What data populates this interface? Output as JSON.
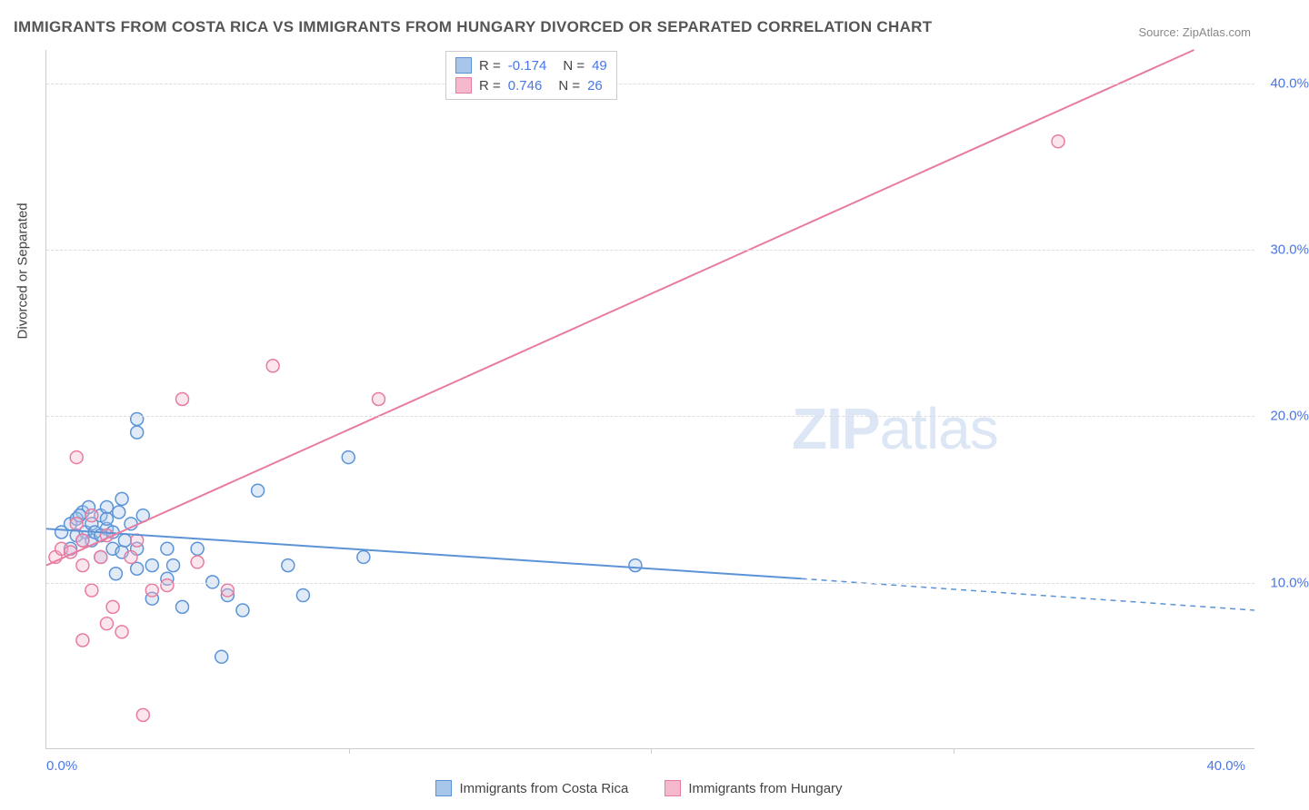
{
  "title": "IMMIGRANTS FROM COSTA RICA VS IMMIGRANTS FROM HUNGARY DIVORCED OR SEPARATED CORRELATION CHART",
  "source": "Source: ZipAtlas.com",
  "y_axis_label": "Divorced or Separated",
  "watermark_part1": "ZIP",
  "watermark_part2": "atlas",
  "chart": {
    "type": "scatter-with-regression",
    "xlim": [
      0,
      40
    ],
    "ylim": [
      0,
      42
    ],
    "x_ticks": [
      {
        "pos": 0,
        "label": "0.0%",
        "align": "left"
      },
      {
        "pos": 40,
        "label": "40.0%",
        "align": "right"
      }
    ],
    "x_minor_ticks": [
      10,
      20,
      30
    ],
    "y_ticks": [
      {
        "pos": 10,
        "label": "10.0%"
      },
      {
        "pos": 20,
        "label": "20.0%"
      },
      {
        "pos": 30,
        "label": "30.0%"
      },
      {
        "pos": 40,
        "label": "40.0%"
      }
    ],
    "background_color": "#ffffff",
    "grid_color": "#dddddd",
    "axis_color": "#cccccc",
    "tick_label_color": "#4876e8",
    "marker_radius": 7,
    "marker_stroke_width": 1.5,
    "marker_fill_opacity": 0.35,
    "line_width": 2
  },
  "series": [
    {
      "name": "Immigrants from Costa Rica",
      "color_stroke": "#5b93d6",
      "color_fill": "#a8c6ea",
      "R": "-0.174",
      "N": "49",
      "regression": {
        "x1": 0,
        "y1": 13.2,
        "x2": 25,
        "y2": 10.2,
        "dash_x1": 25,
        "dash_y1": 10.2,
        "dash_x2": 40,
        "dash_y2": 8.3
      },
      "points": [
        [
          0.5,
          13
        ],
        [
          0.8,
          13.5
        ],
        [
          1.0,
          12.8
        ],
        [
          1.2,
          14.2
        ],
        [
          1.3,
          13.0
        ],
        [
          1.5,
          13.5
        ],
        [
          1.5,
          12.5
        ],
        [
          1.8,
          14.0
        ],
        [
          1.8,
          11.5
        ],
        [
          2.0,
          14.5
        ],
        [
          2.0,
          13.2
        ],
        [
          2.2,
          12.0
        ],
        [
          2.3,
          10.5
        ],
        [
          2.5,
          15.0
        ],
        [
          2.5,
          11.8
        ],
        [
          2.8,
          13.5
        ],
        [
          3.0,
          19.8
        ],
        [
          3.0,
          19.0
        ],
        [
          3.0,
          12.0
        ],
        [
          3.0,
          10.8
        ],
        [
          3.2,
          14.0
        ],
        [
          3.5,
          11.0
        ],
        [
          3.5,
          9.0
        ],
        [
          4.0,
          12.0
        ],
        [
          4.0,
          10.2
        ],
        [
          4.2,
          11.0
        ],
        [
          4.5,
          8.5
        ],
        [
          5.0,
          12.0
        ],
        [
          5.5,
          10.0
        ],
        [
          5.8,
          5.5
        ],
        [
          6.0,
          9.2
        ],
        [
          6.5,
          8.3
        ],
        [
          7.0,
          15.5
        ],
        [
          8.0,
          11.0
        ],
        [
          8.5,
          9.2
        ],
        [
          10.0,
          17.5
        ],
        [
          10.5,
          11.5
        ],
        [
          19.5,
          11.0
        ],
        [
          1.0,
          13.8
        ],
        [
          1.2,
          12.5
        ],
        [
          1.4,
          14.5
        ],
        [
          1.6,
          13.0
        ],
        [
          1.8,
          12.8
        ],
        [
          2.0,
          13.8
        ],
        [
          2.2,
          13.0
        ],
        [
          2.4,
          14.2
        ],
        [
          2.6,
          12.5
        ],
        [
          0.8,
          12.0
        ],
        [
          1.1,
          14.0
        ]
      ]
    },
    {
      "name": "Immigrants from Hungary",
      "color_stroke": "#e87ca0",
      "color_fill": "#f5b8cc",
      "R": "0.746",
      "N": "26",
      "regression": {
        "x1": 0,
        "y1": 11.0,
        "x2": 38,
        "y2": 42.0,
        "dash_x1": 38,
        "dash_y1": 42.0,
        "dash_x2": 38,
        "dash_y2": 42.0
      },
      "points": [
        [
          0.3,
          11.5
        ],
        [
          0.5,
          12.0
        ],
        [
          0.8,
          11.8
        ],
        [
          1.0,
          13.5
        ],
        [
          1.0,
          17.5
        ],
        [
          1.2,
          12.5
        ],
        [
          1.2,
          11.0
        ],
        [
          1.5,
          14.0
        ],
        [
          1.5,
          9.5
        ],
        [
          1.8,
          11.5
        ],
        [
          2.0,
          12.8
        ],
        [
          2.2,
          8.5
        ],
        [
          2.5,
          7.0
        ],
        [
          2.8,
          11.5
        ],
        [
          3.0,
          12.5
        ],
        [
          3.2,
          2.0
        ],
        [
          3.5,
          9.5
        ],
        [
          4.0,
          9.8
        ],
        [
          4.5,
          21.0
        ],
        [
          5.0,
          11.2
        ],
        [
          6.0,
          9.5
        ],
        [
          7.5,
          23.0
        ],
        [
          11.0,
          21.0
        ],
        [
          1.2,
          6.5
        ],
        [
          2.0,
          7.5
        ],
        [
          33.5,
          36.5
        ]
      ]
    }
  ],
  "stats_legend": {
    "R_label": "R =",
    "N_label": "N ="
  }
}
